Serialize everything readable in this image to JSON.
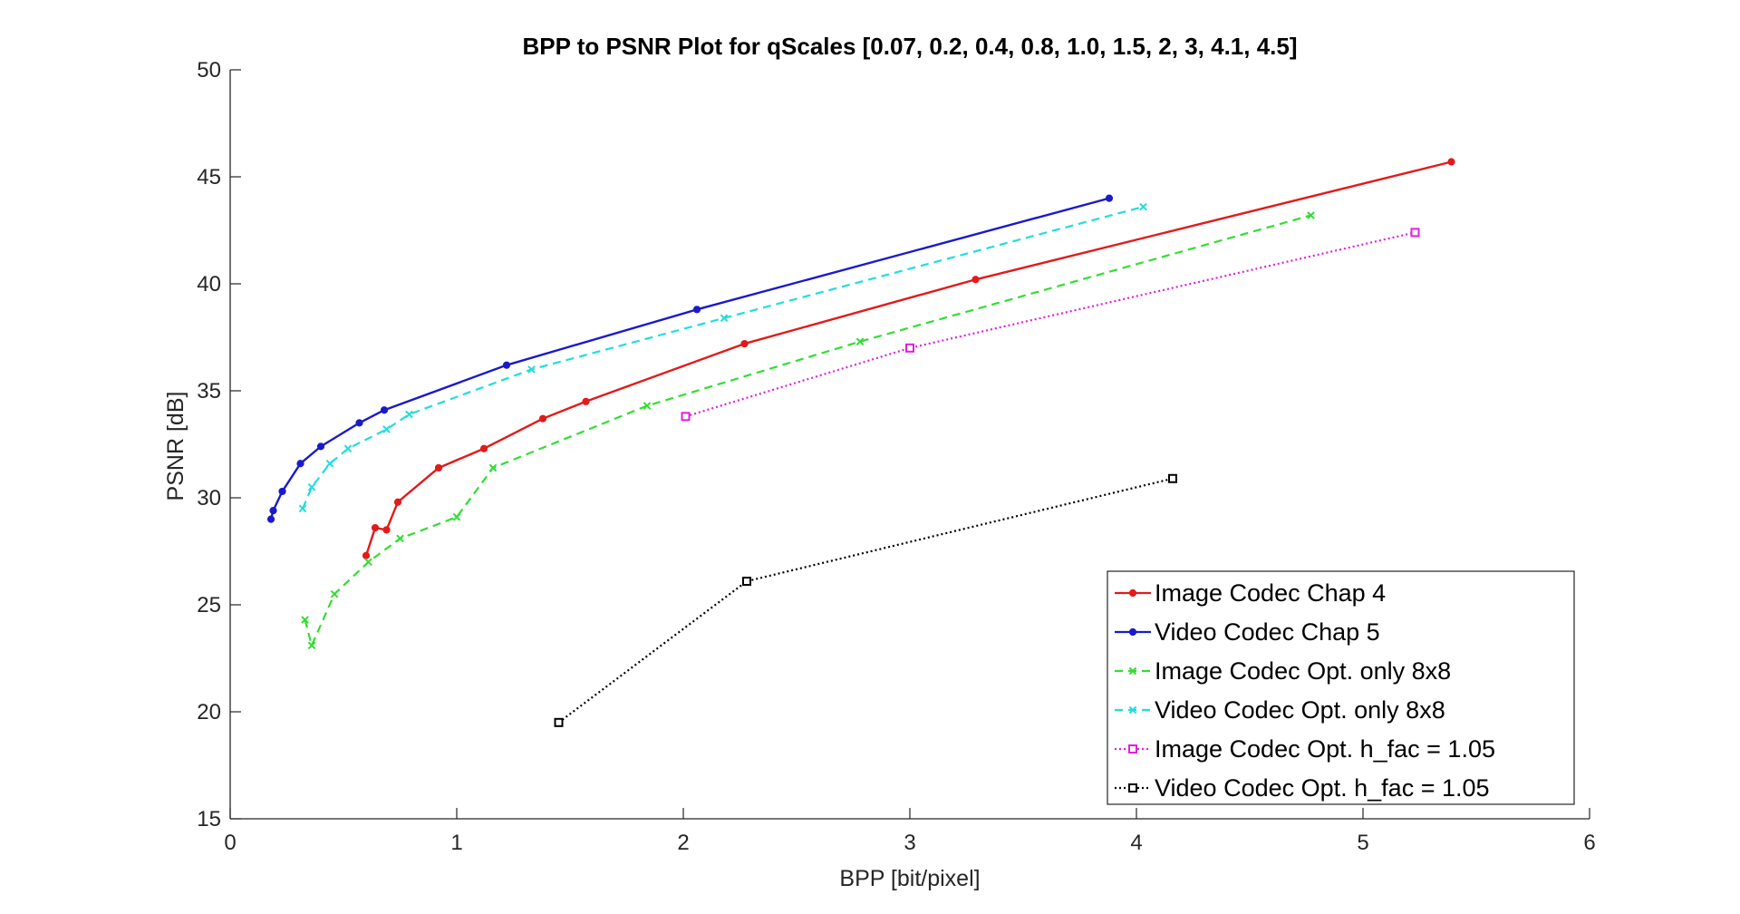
{
  "chart_data": {
    "type": "line",
    "title": "BPP to PSNR Plot for qScales [0.07, 0.2, 0.4, 0.8, 1.0, 1.5, 2, 3, 4.1, 4.5]",
    "xlabel": "BPP [bit/pixel]",
    "ylabel": "PSNR [dB]",
    "xlim": [
      0,
      6
    ],
    "ylim": [
      15,
      50
    ],
    "xticks": [
      0,
      1,
      2,
      3,
      4,
      5,
      6
    ],
    "yticks": [
      15,
      20,
      25,
      30,
      35,
      40,
      45,
      50
    ],
    "grid": false,
    "legend_position": "bottom-right",
    "series": [
      {
        "name": "Image Codec Chap 4",
        "color": "#e21a1a",
        "line": "solid",
        "marker": "dot",
        "x": [
          0.6,
          0.64,
          0.69,
          0.74,
          0.92,
          1.12,
          1.38,
          1.57,
          2.27,
          3.29,
          5.39
        ],
        "y": [
          27.3,
          28.6,
          28.5,
          29.8,
          31.4,
          32.3,
          33.7,
          34.5,
          37.2,
          40.2,
          45.7
        ]
      },
      {
        "name": "Video Codec Chap 5",
        "color": "#1a1acc",
        "line": "solid",
        "marker": "dot",
        "x": [
          0.18,
          0.19,
          0.23,
          0.31,
          0.4,
          0.57,
          0.68,
          1.22,
          2.06,
          3.88
        ],
        "y": [
          29.0,
          29.4,
          30.3,
          31.6,
          32.4,
          33.5,
          34.1,
          36.2,
          38.8,
          44.0
        ]
      },
      {
        "name": "Image Codec Opt. only 8x8",
        "color": "#33dd33",
        "line": "dashed",
        "marker": "x",
        "x": [
          0.33,
          0.36,
          0.46,
          0.61,
          0.75,
          1.0,
          1.16,
          1.84,
          2.78,
          4.77
        ],
        "y": [
          24.3,
          23.1,
          25.5,
          27.0,
          28.1,
          29.1,
          31.4,
          34.3,
          37.3,
          43.2
        ]
      },
      {
        "name": "Video Codec Opt. only 8x8",
        "color": "#22dddd",
        "line": "dashed",
        "marker": "x",
        "x": [
          0.32,
          0.36,
          0.44,
          0.52,
          0.69,
          0.79,
          1.33,
          2.18,
          4.03
        ],
        "y": [
          29.5,
          30.5,
          31.6,
          32.3,
          33.2,
          33.9,
          36.0,
          38.4,
          43.6
        ]
      },
      {
        "name": "Image Codec Opt. h_fac = 1.05",
        "color": "#e020e0",
        "line": "dotted",
        "marker": "square",
        "x": [
          2.01,
          3.0,
          5.23
        ],
        "y": [
          33.8,
          37.0,
          42.4
        ]
      },
      {
        "name": "Video Codec Opt. h_fac = 1.05",
        "color": "#000000",
        "line": "dotted",
        "marker": "square",
        "x": [
          1.45,
          2.28,
          4.16
        ],
        "y": [
          19.5,
          26.1,
          30.9
        ]
      }
    ]
  }
}
